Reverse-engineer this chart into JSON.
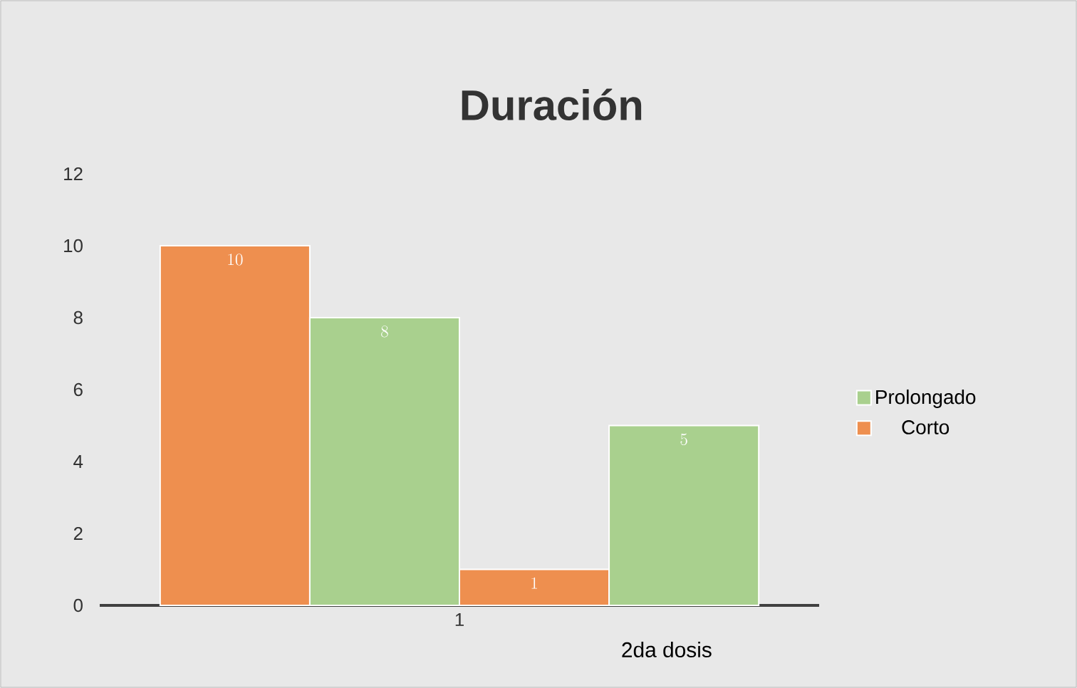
{
  "chart_data": {
    "type": "bar",
    "title": "Duración",
    "xlabel": "2da dosis",
    "categories": [
      "1"
    ],
    "series": [
      {
        "name": "Corto",
        "color": "#ee8f4f",
        "values": [
          10
        ]
      },
      {
        "name": "Prolongado",
        "color": "#a9d08e",
        "values": [
          8
        ]
      },
      {
        "color": "#ee8f4f",
        "values": [
          1
        ]
      },
      {
        "color": "#a9d08e",
        "values": [
          5
        ]
      }
    ],
    "ylim": [
      0,
      12
    ],
    "yticks": [
      0,
      2,
      4,
      6,
      8,
      10,
      12
    ],
    "grid": false,
    "legend": "right",
    "data_labels": true
  }
}
